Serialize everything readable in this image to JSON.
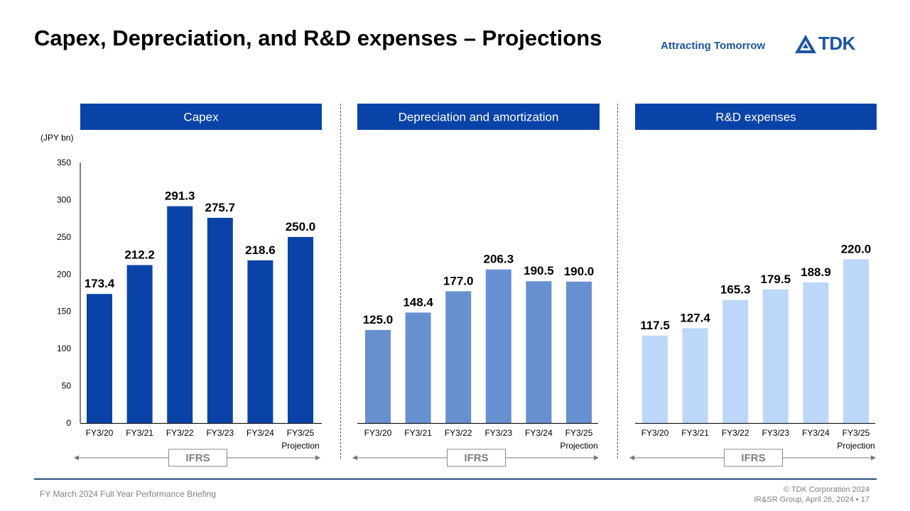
{
  "header": {
    "title": "Capex, Depreciation, and R&D expenses – Projections",
    "tagline": "Attracting Tomorrow",
    "logo_text": "TDK"
  },
  "footer": {
    "left": "FY March 2024 Full Year Performance Briefing",
    "copyright": "© TDK Corporation 2024",
    "group_date": "IR&SR Group, April 26, 2024",
    "page": "17"
  },
  "colors": {
    "capex": "#0a43a8",
    "depreciation": "#6690cf",
    "rd": "#bdd7fa",
    "header_band": "#0a43a8",
    "brand": "#1c54a6"
  },
  "chart_data": [
    {
      "type": "bar",
      "title": "Capex",
      "unit": "(JPY bn)",
      "categories": [
        "FY3/20",
        "FY3/21",
        "FY3/22",
        "FY3/23",
        "FY3/24",
        "FY3/25"
      ],
      "category_sub": [
        "",
        "",
        "",
        "",
        "",
        "Projection"
      ],
      "values": [
        173.4,
        212.2,
        291.3,
        275.7,
        218.6,
        250.0
      ],
      "labels": [
        "173.4",
        "212.2",
        "291.3",
        "275.7",
        "218.6",
        "250.0"
      ],
      "ylim": [
        0,
        350
      ],
      "yticks": [
        0,
        50,
        100,
        150,
        200,
        250,
        300,
        350
      ],
      "annotation": "IFRS"
    },
    {
      "type": "bar",
      "title": "Depreciation and amortization",
      "categories": [
        "FY3/20",
        "FY3/21",
        "FY3/22",
        "FY3/23",
        "FY3/24",
        "FY3/25"
      ],
      "category_sub": [
        "",
        "",
        "",
        "",
        "",
        "Projection"
      ],
      "values": [
        125.0,
        148.4,
        177.0,
        206.3,
        190.5,
        190.0
      ],
      "labels": [
        "125.0",
        "148.4",
        "177.0",
        "206.3",
        "190.5",
        "190.0"
      ],
      "ylim": [
        0,
        350
      ],
      "annotation": "IFRS"
    },
    {
      "type": "bar",
      "title": "R&D expenses",
      "categories": [
        "FY3/20",
        "FY3/21",
        "FY3/22",
        "FY3/23",
        "FY3/24",
        "FY3/25"
      ],
      "category_sub": [
        "",
        "",
        "",
        "",
        "",
        "Projection"
      ],
      "values": [
        117.5,
        127.4,
        165.3,
        179.5,
        188.9,
        220.0
      ],
      "labels": [
        "117.5",
        "127.4",
        "165.3",
        "179.5",
        "188.9",
        "220.0"
      ],
      "ylim": [
        0,
        350
      ],
      "annotation": "IFRS"
    }
  ]
}
